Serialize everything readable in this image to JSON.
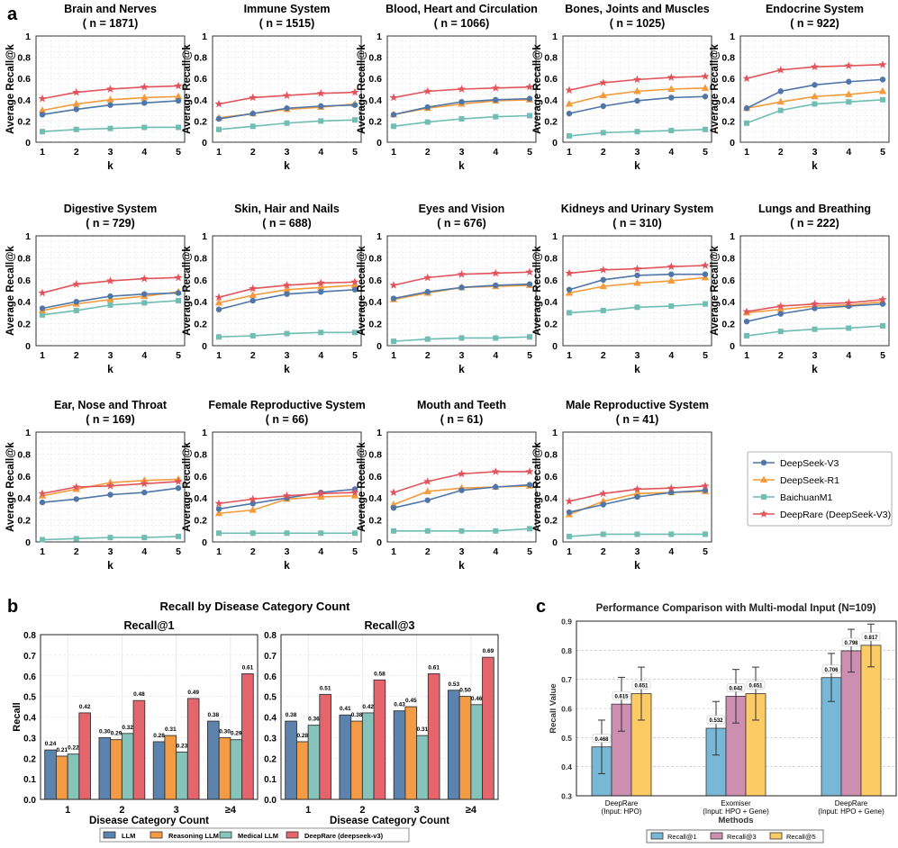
{
  "panel_labels": {
    "a": "a",
    "b": "b",
    "c": "c"
  },
  "colors": {
    "DeepSeek-V3": "#4f76a8",
    "DeepSeek-R1": "#f39a3b",
    "BaichuanM1": "#6fbdb3",
    "DeepRare (DeepSeek-V3)": "#e2545c",
    "LLM": "#5b83ad",
    "Reasoning LLM": "#f39c45",
    "Medical LLM": "#86c4bb",
    "DeepRare (deepseek-v3)": "#e5656c",
    "Recall@1": "#79b7d6",
    "Recall@3": "#cc8fb0",
    "Recall@5": "#fccb63"
  },
  "chart_data": [
    {
      "type": "line",
      "panel": "a",
      "xlabel": "k",
      "ylabel": "Average Recall@k",
      "x": [
        1,
        2,
        3,
        4,
        5
      ],
      "ylim": [
        0,
        1
      ],
      "yticks": [
        "0",
        "0.2",
        "0.4",
        "0.6",
        "0.8",
        "1"
      ],
      "legend": [
        "DeepSeek-V3",
        "DeepSeek-R1",
        "BaichuanM1",
        "DeepRare (DeepSeek-V3)"
      ],
      "legend_position": "bottom-right",
      "subplots": [
        {
          "title": "Brain and Nerves",
          "n": "( n = 1871)",
          "series": [
            [
              0.26,
              0.31,
              0.35,
              0.37,
              0.39
            ],
            [
              0.3,
              0.36,
              0.4,
              0.42,
              0.43
            ],
            [
              0.1,
              0.12,
              0.13,
              0.14,
              0.14
            ],
            [
              0.41,
              0.47,
              0.5,
              0.52,
              0.53
            ]
          ]
        },
        {
          "title": "Immune System",
          "n": "( n = 1515)",
          "series": [
            [
              0.22,
              0.27,
              0.32,
              0.34,
              0.35
            ],
            [
              0.23,
              0.27,
              0.31,
              0.33,
              0.36
            ],
            [
              0.12,
              0.15,
              0.18,
              0.2,
              0.21
            ],
            [
              0.36,
              0.42,
              0.44,
              0.46,
              0.47
            ]
          ]
        },
        {
          "title": "Blood, Heart and Circulation",
          "n": "( n = 1066)",
          "series": [
            [
              0.26,
              0.33,
              0.38,
              0.4,
              0.41
            ],
            [
              0.26,
              0.32,
              0.36,
              0.39,
              0.4
            ],
            [
              0.15,
              0.19,
              0.22,
              0.24,
              0.25
            ],
            [
              0.42,
              0.48,
              0.5,
              0.51,
              0.52
            ]
          ]
        },
        {
          "title": "Bones, Joints and Muscles",
          "n": "( n = 1025)",
          "series": [
            [
              0.27,
              0.34,
              0.39,
              0.42,
              0.43
            ],
            [
              0.36,
              0.44,
              0.48,
              0.5,
              0.51
            ],
            [
              0.06,
              0.09,
              0.1,
              0.11,
              0.12
            ],
            [
              0.49,
              0.56,
              0.59,
              0.61,
              0.62
            ]
          ]
        },
        {
          "title": "Endocrine System",
          "n": "( n = 922)",
          "series": [
            [
              0.32,
              0.48,
              0.54,
              0.57,
              0.59
            ],
            [
              0.32,
              0.38,
              0.43,
              0.45,
              0.48
            ],
            [
              0.18,
              0.3,
              0.36,
              0.38,
              0.4
            ],
            [
              0.6,
              0.68,
              0.71,
              0.72,
              0.73
            ]
          ]
        },
        {
          "title": "Digestive System",
          "n": "( n = 729)",
          "series": [
            [
              0.34,
              0.4,
              0.45,
              0.47,
              0.48
            ],
            [
              0.32,
              0.38,
              0.42,
              0.45,
              0.49
            ],
            [
              0.28,
              0.32,
              0.37,
              0.39,
              0.41
            ],
            [
              0.48,
              0.56,
              0.59,
              0.61,
              0.62
            ]
          ]
        },
        {
          "title": "Skin, Hair and Nails",
          "n": "( n = 688)",
          "series": [
            [
              0.33,
              0.41,
              0.47,
              0.49,
              0.51
            ],
            [
              0.39,
              0.46,
              0.51,
              0.53,
              0.55
            ],
            [
              0.08,
              0.09,
              0.11,
              0.12,
              0.12
            ],
            [
              0.44,
              0.52,
              0.55,
              0.57,
              0.58
            ]
          ]
        },
        {
          "title": "Eyes and Vision",
          "n": "( n = 676)",
          "series": [
            [
              0.43,
              0.49,
              0.53,
              0.55,
              0.56
            ],
            [
              0.42,
              0.48,
              0.53,
              0.54,
              0.55
            ],
            [
              0.04,
              0.06,
              0.07,
              0.07,
              0.08
            ],
            [
              0.55,
              0.62,
              0.65,
              0.66,
              0.67
            ]
          ]
        },
        {
          "title": "Kidneys and Urinary System",
          "n": "( n = 310)",
          "series": [
            [
              0.51,
              0.6,
              0.64,
              0.65,
              0.65
            ],
            [
              0.48,
              0.54,
              0.57,
              0.59,
              0.62
            ],
            [
              0.3,
              0.32,
              0.35,
              0.36,
              0.38
            ],
            [
              0.66,
              0.69,
              0.7,
              0.72,
              0.73
            ]
          ]
        },
        {
          "title": "Lungs and Breathing",
          "n": "( n = 222)",
          "series": [
            [
              0.22,
              0.29,
              0.34,
              0.36,
              0.38
            ],
            [
              0.3,
              0.33,
              0.36,
              0.37,
              0.4
            ],
            [
              0.09,
              0.13,
              0.15,
              0.16,
              0.18
            ],
            [
              0.31,
              0.36,
              0.38,
              0.39,
              0.42
            ]
          ]
        },
        {
          "title": "Ear, Nose and Throat",
          "n": "( n = 169)",
          "series": [
            [
              0.36,
              0.39,
              0.43,
              0.45,
              0.49
            ],
            [
              0.42,
              0.48,
              0.54,
              0.56,
              0.57
            ],
            [
              0.02,
              0.03,
              0.04,
              0.04,
              0.05
            ],
            [
              0.44,
              0.5,
              0.51,
              0.53,
              0.55
            ]
          ]
        },
        {
          "title": "Female Reproductive System",
          "n": "( n = 66)",
          "series": [
            [
              0.3,
              0.35,
              0.4,
              0.45,
              0.48
            ],
            [
              0.26,
              0.29,
              0.39,
              0.41,
              0.42
            ],
            [
              0.08,
              0.08,
              0.08,
              0.08,
              0.08
            ],
            [
              0.35,
              0.39,
              0.42,
              0.44,
              0.45
            ]
          ]
        },
        {
          "title": "Mouth and Teeth",
          "n": "( n = 61)",
          "series": [
            [
              0.31,
              0.38,
              0.47,
              0.5,
              0.52
            ],
            [
              0.34,
              0.46,
              0.49,
              0.5,
              0.51
            ],
            [
              0.1,
              0.1,
              0.1,
              0.1,
              0.12
            ],
            [
              0.45,
              0.55,
              0.62,
              0.64,
              0.64
            ]
          ]
        },
        {
          "title": "Male Reproductive System",
          "n": "( n = 41)",
          "series": [
            [
              0.27,
              0.34,
              0.41,
              0.45,
              0.47
            ],
            [
              0.25,
              0.37,
              0.44,
              0.45,
              0.46
            ],
            [
              0.05,
              0.07,
              0.07,
              0.07,
              0.07
            ],
            [
              0.37,
              0.44,
              0.48,
              0.49,
              0.51
            ]
          ]
        }
      ]
    },
    {
      "type": "bar",
      "panel": "b",
      "title": "Recall by Disease Category Count",
      "xlabel": "Disease Category Count",
      "ylabel": "Recall",
      "categories": [
        "1",
        "2",
        "3",
        "≥4"
      ],
      "ylim": [
        0,
        0.8
      ],
      "yticks": [
        "0.0",
        "0.1",
        "0.2",
        "0.3",
        "0.4",
        "0.5",
        "0.6",
        "0.7",
        "0.8"
      ],
      "legend": [
        "LLM",
        "Reasoning LLM",
        "Medical LLM",
        "DeepRare (deepseek-v3)"
      ],
      "legend_position": "bottom",
      "subplots": [
        {
          "title": "Recall@1",
          "series": [
            [
              0.24,
              0.3,
              0.28,
              0.38
            ],
            [
              0.21,
              0.29,
              0.31,
              0.3
            ],
            [
              0.22,
              0.32,
              0.23,
              0.29
            ],
            [
              0.42,
              0.48,
              0.49,
              0.61
            ]
          ],
          "labels": [
            [
              "0.24",
              "0.30",
              "0.28",
              "0.38"
            ],
            [
              "0.21",
              "0.29",
              "0.31",
              "0.30"
            ],
            [
              "0.22",
              "0.32",
              "0.23",
              "0.29"
            ],
            [
              "0.42",
              "0.48",
              "0.49",
              "0.61"
            ]
          ]
        },
        {
          "title": "Recall@3",
          "series": [
            [
              0.38,
              0.41,
              0.43,
              0.53
            ],
            [
              0.28,
              0.38,
              0.45,
              0.5
            ],
            [
              0.36,
              0.42,
              0.31,
              0.46
            ],
            [
              0.51,
              0.58,
              0.61,
              0.69
            ]
          ],
          "labels": [
            [
              "0.38",
              "0.41",
              "0.43",
              "0.53"
            ],
            [
              "0.28",
              "0.38",
              "0.45",
              "0.50"
            ],
            [
              "0.36",
              "0.42",
              "0.31",
              "0.46"
            ],
            [
              "0.51",
              "0.58",
              "0.61",
              "0.69"
            ]
          ]
        }
      ]
    },
    {
      "type": "bar",
      "panel": "c",
      "title": "Performance Comparison with Multi-modal Input (N=109)",
      "xlabel": "Methods",
      "ylabel": "Recall Value",
      "categories": [
        [
          "DeepRare",
          "(Input: HPO)"
        ],
        [
          "Exomiser",
          "(Input: HPO + Gene)"
        ],
        [
          "DeepRare",
          "(Input: HPO + Gene)"
        ]
      ],
      "ylim": [
        0.3,
        0.9
      ],
      "yticks": [
        "0.3",
        "0.4",
        "0.5",
        "0.6",
        "0.7",
        "0.8",
        "0.9"
      ],
      "legend": [
        "Recall@1",
        "Recall@3",
        "Recall@5"
      ],
      "legend_position": "bottom",
      "series": [
        [
          0.468,
          0.532,
          0.706
        ],
        [
          0.615,
          0.642,
          0.798
        ],
        [
          0.651,
          0.651,
          0.817
        ]
      ],
      "labels": [
        [
          "0.468",
          "0.532",
          "0.706"
        ],
        [
          "0.615",
          "0.642",
          "0.798"
        ],
        [
          "0.651",
          "0.651",
          "0.817"
        ]
      ],
      "error_low": [
        [
          0.376,
          0.44,
          0.624
        ],
        [
          0.522,
          0.55,
          0.725
        ],
        [
          0.56,
          0.56,
          0.743
        ]
      ],
      "error_high": [
        [
          0.56,
          0.624,
          0.789
        ],
        [
          0.707,
          0.734,
          0.872
        ],
        [
          0.742,
          0.742,
          0.89
        ]
      ]
    }
  ]
}
